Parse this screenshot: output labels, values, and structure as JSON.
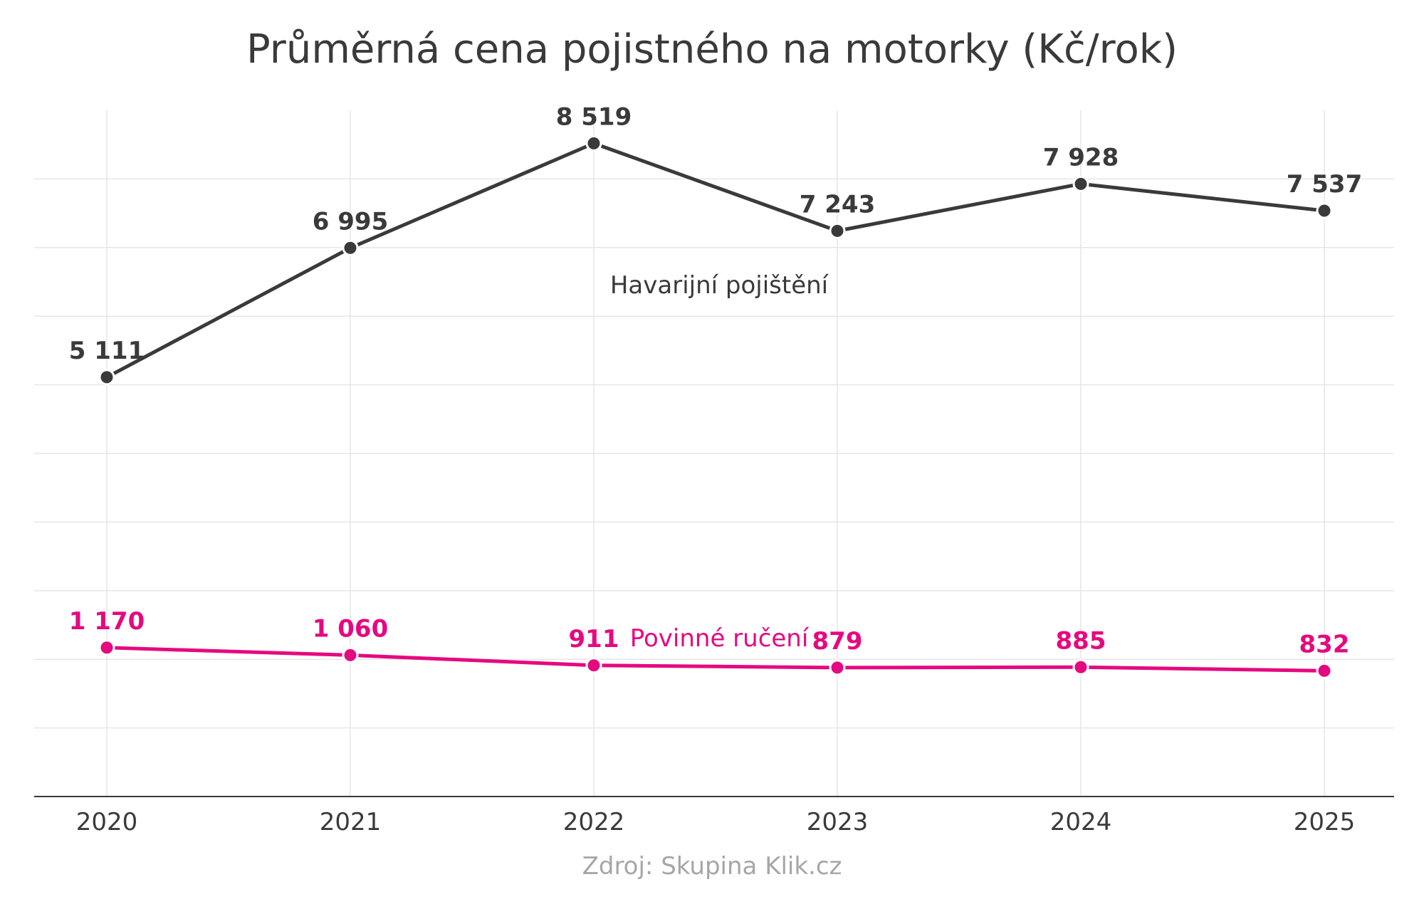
{
  "chart_data": {
    "type": "line",
    "title": "Průměrná cena pojistného na motorky (Kč/rok)",
    "source": "Zdroj: Skupina Klik.cz",
    "x": [
      "2020",
      "2021",
      "2022",
      "2023",
      "2024",
      "2025"
    ],
    "ylim": [
      -1000,
      9000
    ],
    "grid": true,
    "series": [
      {
        "name": "Havarijní pojištění",
        "color": "#3a3a3a",
        "values": [
          5111,
          6995,
          8519,
          7243,
          7928,
          7537
        ],
        "labels": [
          "5 111",
          "6 995",
          "8 519",
          "7 243",
          "7 928",
          "7 537"
        ]
      },
      {
        "name": "Povinné ručení",
        "color": "#e5097f",
        "values": [
          1170,
          1060,
          911,
          879,
          885,
          832
        ],
        "labels": [
          "1 170",
          "1 060",
          "911",
          "879",
          "885",
          "832"
        ]
      }
    ]
  }
}
